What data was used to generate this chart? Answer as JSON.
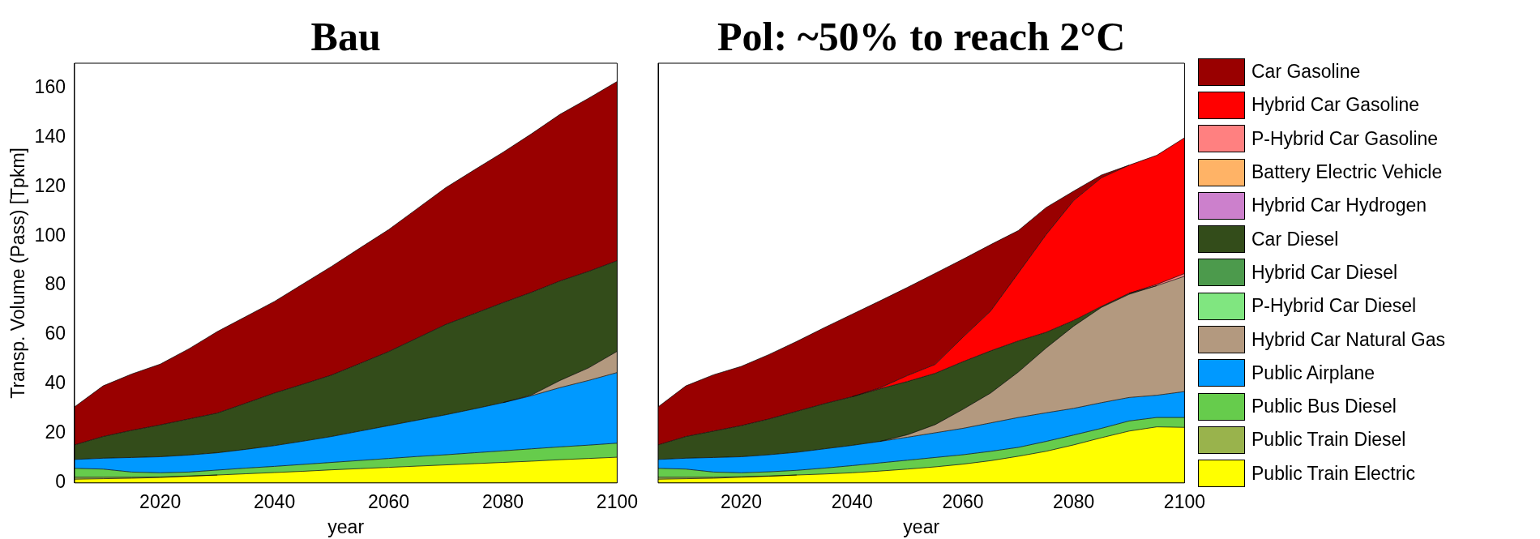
{
  "chart_data": [
    {
      "type": "area",
      "title": "Bau",
      "xlabel": "year",
      "ylabel": "Transp. Volume (Pass) [Tpkm]",
      "stacked": true,
      "marker": "none",
      "xlim": [
        2005,
        2100
      ],
      "xticks": [
        2020,
        2040,
        2060,
        2080,
        2100
      ],
      "ylim": [
        0,
        170
      ],
      "yticks": [
        0,
        20,
        40,
        60,
        80,
        100,
        120,
        140,
        160
      ],
      "x": [
        2005,
        2010,
        2015,
        2020,
        2025,
        2030,
        2035,
        2040,
        2045,
        2050,
        2055,
        2060,
        2065,
        2070,
        2075,
        2080,
        2085,
        2090,
        2095,
        2100
      ],
      "series": [
        {
          "color": "#ffff00",
          "values": [
            1.5,
            1.7,
            1.9,
            2.2,
            2.7,
            3.2,
            3.7,
            4.2,
            4.7,
            5.3,
            5.8,
            6.3,
            6.8,
            7.3,
            7.8,
            8.3,
            8.8,
            9.4,
            9.9,
            10.4
          ]
        },
        {
          "color": "#99b34c",
          "values": [
            0.8,
            0.6,
            0.4,
            0.2,
            0.1,
            0,
            null,
            null,
            null,
            null,
            null,
            null,
            null,
            null,
            null,
            null,
            null,
            null,
            null,
            null
          ]
        },
        {
          "color": "#66cc4c",
          "values": [
            3.6,
            3.3,
            2.1,
            1.7,
            1.6,
            2.0,
            2.3,
            2.5,
            2.8,
            3.0,
            3.3,
            3.6,
            3.9,
            4.1,
            4.4,
            4.7,
            5.0,
            5.2,
            5.4,
            5.7
          ]
        },
        {
          "color": "#0099ff",
          "values": [
            3.6,
            4.4,
            5.9,
            6.5,
            6.9,
            7.0,
            7.6,
            8.4,
            9.4,
            10.5,
            11.9,
            13.3,
            14.7,
            16.2,
            17.8,
            19.5,
            21.5,
            24.0,
            26.2,
            28.6
          ]
        },
        {
          "color": "#b3997f",
          "values": [
            null,
            null,
            null,
            null,
            null,
            null,
            null,
            null,
            null,
            null,
            null,
            null,
            null,
            null,
            null,
            0,
            0.3,
            2.9,
            5.1,
            8.6
          ]
        },
        {
          "color": "#334c1a",
          "values": [
            5.9,
            8.8,
            11.0,
            12.9,
            14.6,
            16.1,
            18.7,
            21.3,
            23.1,
            24.9,
            27.4,
            30.0,
            33.3,
            36.6,
            38.6,
            40.5,
            41.6,
            40.3,
            39.1,
            36.7
          ]
        },
        {
          "color": "#990000",
          "values": [
            15.4,
            20.5,
            22.8,
            24.6,
            28.4,
            33.0,
            35.1,
            37.1,
            40.6,
            44.0,
            46.8,
            49.4,
            52.4,
            55.4,
            58.2,
            60.9,
            64.2,
            67.5,
            70.1,
            72.6
          ]
        }
      ]
    },
    {
      "type": "area",
      "title": "Pol: ~50% to reach 2°C",
      "xlabel": "year",
      "stacked": true,
      "marker": "none",
      "legend": "right",
      "tick_labels": "x",
      "xlim": [
        2005,
        2100
      ],
      "xticks": [
        2020,
        2040,
        2060,
        2080,
        2100
      ],
      "ylim": [
        0,
        170
      ],
      "yticks": [
        0,
        20,
        40,
        60,
        80,
        100,
        120,
        140,
        160
      ],
      "x": [
        2005,
        2010,
        2015,
        2020,
        2025,
        2030,
        2035,
        2040,
        2045,
        2050,
        2055,
        2060,
        2065,
        2070,
        2075,
        2080,
        2085,
        2090,
        2095,
        2100
      ],
      "series": [
        {
          "name": "Public Train Electric",
          "color": "#ffff00",
          "values": [
            1.5,
            1.7,
            1.9,
            2.3,
            2.7,
            3.2,
            3.6,
            4.1,
            4.8,
            5.6,
            6.5,
            7.6,
            9.0,
            10.8,
            12.8,
            15.4,
            18.3,
            21.0,
            22.7,
            22.5
          ]
        },
        {
          "name": "Public Train Diesel",
          "color": "#99b34c",
          "values": [
            0.8,
            0.6,
            0.4,
            0.2,
            0.1,
            0,
            null,
            null,
            null,
            null,
            null,
            null,
            null,
            null,
            null,
            null,
            null,
            null,
            null,
            null
          ]
        },
        {
          "name": "Public Bus Diesel",
          "color": "#66cc4c",
          "values": [
            3.6,
            3.3,
            2.1,
            1.6,
            1.7,
            1.9,
            2.4,
            2.9,
            3.3,
            3.6,
            3.8,
            3.8,
            3.8,
            3.6,
            4.0,
            4.0,
            3.8,
            4.1,
            3.8,
            4.0
          ]
        },
        {
          "name": "Public Airplane",
          "color": "#0099ff",
          "values": [
            3.6,
            4.4,
            5.9,
            6.5,
            6.9,
            7.3,
            7.8,
            8.2,
            8.7,
            9.3,
            10.0,
            10.7,
            11.5,
            12.1,
            11.6,
            10.8,
            10.4,
            9.5,
            9.0,
            10.5
          ]
        },
        {
          "name": "Hybrid Car Natural Gas",
          "color": "#b3997f",
          "values": [
            null,
            null,
            null,
            null,
            null,
            null,
            null,
            null,
            0,
            1.0,
            3.3,
            7.7,
            12.1,
            18.4,
            26.2,
            33.3,
            38.6,
            41.8,
            44.4,
            46.7
          ]
        },
        {
          "name": "P-Hybrid Car Diesel",
          "color": "#80e680",
          "values": [
            null,
            null,
            null,
            null,
            null,
            null,
            null,
            null,
            null,
            null,
            null,
            null,
            null,
            null,
            null,
            null,
            null,
            null,
            null,
            null
          ]
        },
        {
          "name": "Hybrid Car Diesel",
          "color": "#4c9a4c",
          "values": [
            null,
            null,
            null,
            null,
            null,
            null,
            null,
            null,
            null,
            null,
            null,
            null,
            null,
            null,
            null,
            null,
            null,
            null,
            null,
            null
          ]
        },
        {
          "name": "Car Diesel",
          "color": "#334c1a",
          "values": [
            5.9,
            8.8,
            10.7,
            12.6,
            14.5,
            16.6,
            18.3,
            19.7,
            21.3,
            21.6,
            20.8,
            19.3,
            17.1,
            12.6,
            6.4,
            2.3,
            0.4,
            0.4,
            0,
            null
          ]
        },
        {
          "name": "Hybrid Car Hydrogen",
          "color": "#cc80cc",
          "values": [
            null,
            null,
            null,
            null,
            null,
            null,
            null,
            null,
            null,
            null,
            null,
            null,
            null,
            null,
            null,
            null,
            null,
            null,
            null,
            null
          ]
        },
        {
          "name": "Battery Electric Vehicle",
          "color": "#ffb366",
          "values": [
            null,
            null,
            null,
            null,
            null,
            null,
            null,
            null,
            null,
            null,
            null,
            null,
            null,
            null,
            null,
            null,
            null,
            null,
            null,
            null
          ]
        },
        {
          "name": "P-Hybrid Car Gasoline",
          "color": "#ff8080",
          "values": [
            null,
            null,
            null,
            null,
            null,
            null,
            null,
            null,
            null,
            null,
            null,
            null,
            null,
            null,
            null,
            null,
            null,
            0,
            0.5,
            1.1
          ]
        },
        {
          "name": "Hybrid Car Gasoline",
          "color": "#ff0000",
          "values": [
            null,
            null,
            null,
            null,
            null,
            null,
            null,
            0,
            0.4,
            2.4,
            3.6,
            9.9,
            16.1,
            27.5,
            39.5,
            48.6,
            52.1,
            51.9,
            52.3,
            55.0
          ]
        },
        {
          "name": "Car Gasoline",
          "color": "#990000",
          "values": [
            15.4,
            20.5,
            22.8,
            24.0,
            26.1,
            28.3,
            30.8,
            33.4,
            35.2,
            35.7,
            36.9,
            31.6,
            26.9,
            17.2,
            11.0,
            3.8,
            1.1,
            0,
            null,
            null
          ]
        }
      ]
    }
  ]
}
